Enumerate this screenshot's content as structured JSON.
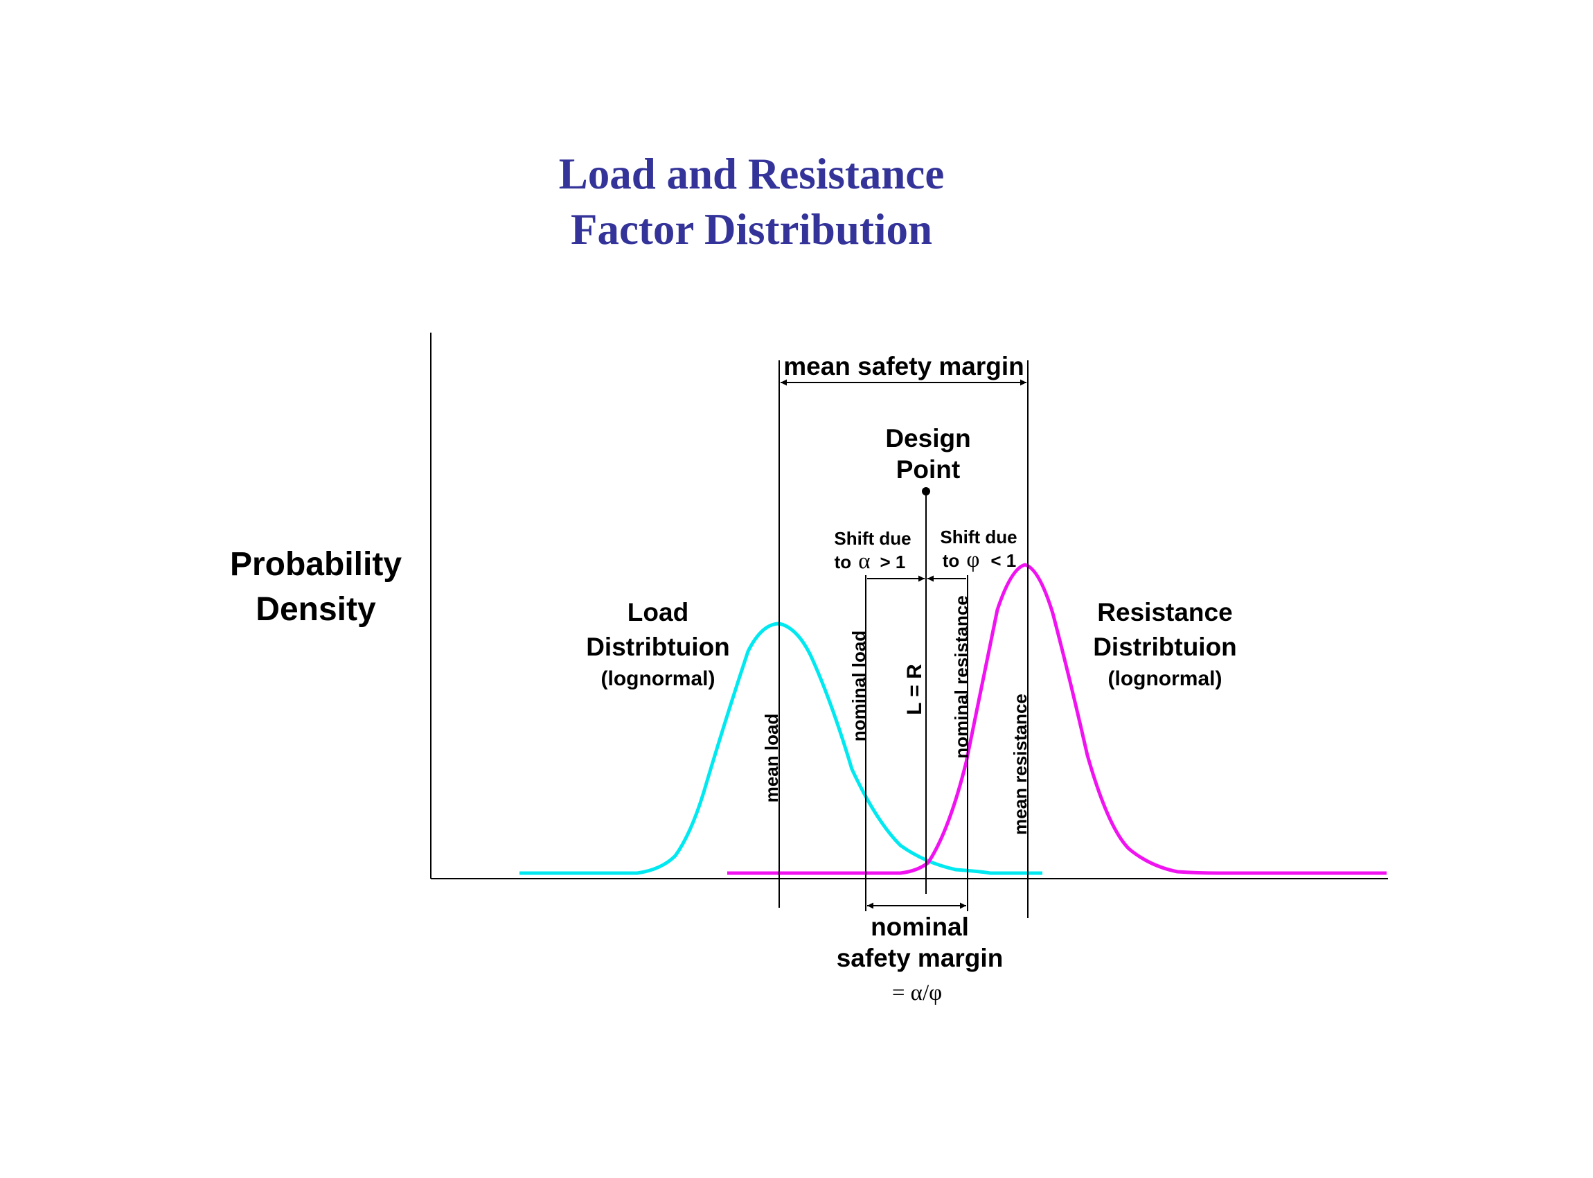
{
  "title": {
    "line1": "Load and Resistance",
    "line2": "Factor Distribution"
  },
  "axis": {
    "ylabel_line1": "Probability",
    "ylabel_line2": "Density"
  },
  "load": {
    "name_line1": "Load",
    "name_line2": "Distribtuion",
    "type": "(lognormal)",
    "mean_label": "mean load",
    "nominal_label": "nominal load"
  },
  "resistance": {
    "name_line1": "Resistance",
    "name_line2": "Distribtuion",
    "type": "(lognormal)",
    "mean_label": "mean resistance",
    "nominal_label": "nominal resistance"
  },
  "margins": {
    "mean_label": "mean safety margin",
    "nominal_line1": "nominal",
    "nominal_line2": "safety margin",
    "nominal_formula": "= α/φ"
  },
  "design_point": {
    "line1": "Design",
    "line2": "Point",
    "equation": "L = R"
  },
  "shifts": {
    "left_line1": "Shift due",
    "left_to": "to",
    "left_sym": "α",
    "left_cond": "> 1",
    "right_line1": "Shift due",
    "right_to": "to",
    "right_sym": "φ",
    "right_cond": "< 1"
  },
  "colors": {
    "title": "#333399",
    "load_curve": "#00e8f0",
    "resistance_curve": "#f012f0",
    "lines": "#000000"
  }
}
